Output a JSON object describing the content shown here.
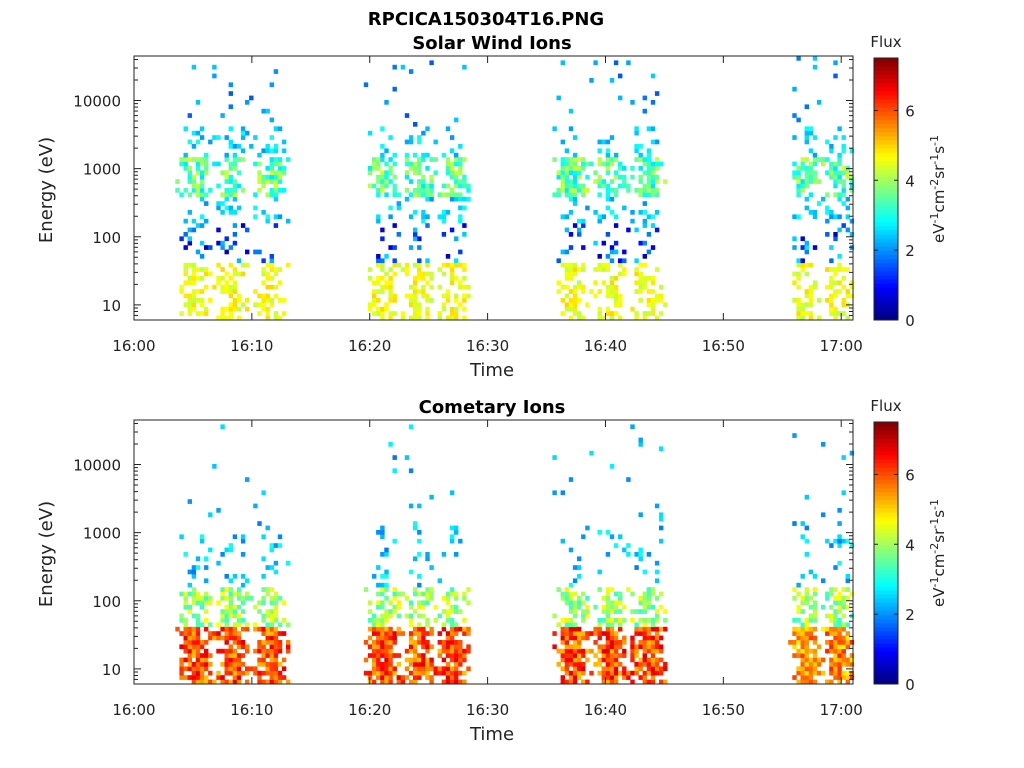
{
  "figure_title": "RPCICA150304T16.PNG",
  "chart_data": [
    {
      "type": "heatmap",
      "title": "Solar Wind Ions",
      "xlabel": "Time",
      "ylabel": "Energy (eV)",
      "x_ticks": [
        "16:00",
        "16:10",
        "16:20",
        "16:30",
        "16:40",
        "16:50",
        "17:00"
      ],
      "x_range_minutes": [
        0,
        61
      ],
      "y_ticks": [
        "10",
        "100",
        "1000",
        "10000"
      ],
      "y_scale": "log",
      "y_range": [
        6,
        45000
      ],
      "colorbar": {
        "title": "Flux",
        "label": "eV-1cm-2sr-1s-1",
        "ticks": [
          "0",
          "2",
          "4",
          "6"
        ],
        "range": [
          0,
          7.5
        ],
        "colormap": "jet"
      },
      "bursts": [
        {
          "start_min": 3.5,
          "end_min": 13.0,
          "peak_level": 5.0,
          "dominant": "mid"
        },
        {
          "start_min": 19.5,
          "end_min": 28.5,
          "peak_level": 5.0,
          "dominant": "mid"
        },
        {
          "start_min": 35.5,
          "end_min": 45.0,
          "peak_level": 5.0,
          "dominant": "mid"
        },
        {
          "start_min": 55.5,
          "end_min": 61.0,
          "peak_level": 4.5,
          "dominant": "mid"
        }
      ]
    },
    {
      "type": "heatmap",
      "title": "Cometary Ions",
      "xlabel": "Time",
      "ylabel": "Energy (eV)",
      "x_ticks": [
        "16:00",
        "16:10",
        "16:20",
        "16:30",
        "16:40",
        "16:50",
        "17:00"
      ],
      "x_range_minutes": [
        0,
        61
      ],
      "y_ticks": [
        "10",
        "100",
        "1000",
        "10000"
      ],
      "y_scale": "log",
      "y_range": [
        6,
        45000
      ],
      "colorbar": {
        "title": "Flux",
        "label": "eV-1cm-2sr-1s-1",
        "ticks": [
          "0",
          "2",
          "4",
          "6"
        ],
        "range": [
          0,
          7.5
        ],
        "colormap": "jet"
      },
      "bursts": [
        {
          "start_min": 3.5,
          "end_min": 13.0,
          "peak_level": 6.8,
          "dominant": "low"
        },
        {
          "start_min": 19.5,
          "end_min": 28.5,
          "peak_level": 6.8,
          "dominant": "low"
        },
        {
          "start_min": 35.5,
          "end_min": 45.0,
          "peak_level": 6.8,
          "dominant": "low"
        },
        {
          "start_min": 55.5,
          "end_min": 61.0,
          "peak_level": 6.3,
          "dominant": "low"
        }
      ]
    }
  ]
}
